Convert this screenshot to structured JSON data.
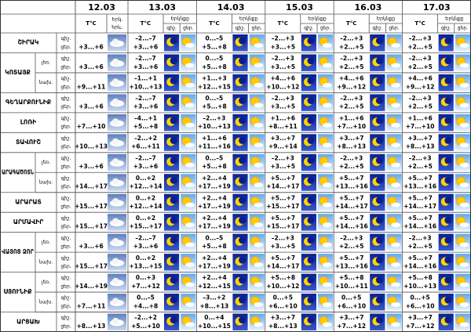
{
  "header": {
    "dates": [
      "12.03",
      "13.03",
      "14.03",
      "15.03",
      "16.03",
      "17.03"
    ],
    "temp_label": "T°C",
    "sky_short_1": "Երկ.",
    "sky_short_2": "երև.",
    "sky_label": "Երկնքը",
    "night": "գիշ.",
    "day": "ցեր."
  },
  "regions": [
    {
      "name": "ՇԻՐԱԿ",
      "rows": [
        {
          "first": "+3...+6",
          "days": [
            [
              "–2...–7",
              "+3...+6"
            ],
            [
              "0...–5",
              "+5...+8"
            ],
            [
              "–2...+3",
              "+3...+5"
            ],
            [
              "–2...+3",
              "+2...+5"
            ],
            [
              "–2...+3",
              "+2...+5"
            ]
          ]
        }
      ]
    },
    {
      "name": "ԿՈՏԱՅՔ",
      "rows": [
        {
          "sub": "լեռ.",
          "first": "+3...+6",
          "days": [
            [
              "–2...–7",
              "+3...+6"
            ],
            [
              "0...–5",
              "+5...+8"
            ],
            [
              "–2...+3",
              "+3...+5"
            ],
            [
              "–2...+3",
              "+2...+5"
            ],
            [
              "–2...+3",
              "+2...+5"
            ]
          ]
        },
        {
          "sub": "նախ.",
          "first": "+9...+11",
          "days": [
            [
              "–1...+1",
              "+10...+13"
            ],
            [
              "+1...+3",
              "+12...+15"
            ],
            [
              "+4...+6",
              "+10...+12"
            ],
            [
              "+4...+6",
              "+9...+12"
            ],
            [
              "+4...+6",
              "+9...+12"
            ]
          ]
        }
      ]
    },
    {
      "name": "ԳԵՂԱՐՔՈՒՆԻՔ",
      "rows": [
        {
          "first": "+3...+6",
          "days": [
            [
              "–2...–7",
              "+3...+6"
            ],
            [
              "0...–5",
              "+5...+8"
            ],
            [
              "–2...+3",
              "+3...+5"
            ],
            [
              "–2...+3",
              "+2...+5"
            ],
            [
              "–2...+3",
              "+2...+5"
            ]
          ]
        }
      ]
    },
    {
      "name": "ԼՈՌԻ",
      "rows": [
        {
          "first": "+7...+10",
          "days": [
            [
              "–4...+1",
              "+5...+8"
            ],
            [
              "–2...+3",
              "+10...+13"
            ],
            [
              "+1...+6",
              "+8...+11"
            ],
            [
              "+1...+6",
              "+7...+10"
            ],
            [
              "+1...+6",
              "+7...+10"
            ]
          ]
        }
      ]
    },
    {
      "name": "ՏԱՎՈՒՇ",
      "rows": [
        {
          "first": "+10...+13",
          "days": [
            [
              "–2...+2",
              "+6...+11"
            ],
            [
              "+1...+6",
              "+11...+16"
            ],
            [
              "+3...+7",
              "+9...+14"
            ],
            [
              "+3...+7",
              "+8...+13"
            ],
            [
              "+3...+7",
              "+8...+13"
            ]
          ]
        }
      ]
    },
    {
      "name": "ԱՐԱԳԱԾՈՏՆ",
      "rows": [
        {
          "sub": "լեռ.",
          "first": "+3...+6",
          "days": [
            [
              "–2...–7",
              "+3...+6"
            ],
            [
              "0...–5",
              "+5...+8"
            ],
            [
              "–2...+3",
              "+3...+5"
            ],
            [
              "–2...+3",
              "+2...+5"
            ],
            [
              "–2...+3",
              "+2...+5"
            ]
          ]
        },
        {
          "sub": "նախ.",
          "first": "+14...+17",
          "days": [
            [
              "0...+2",
              "+12...+14"
            ],
            [
              "+2...+4",
              "+17...+19"
            ],
            [
              "+5...+7",
              "+14...+17"
            ],
            [
              "+5...+7",
              "+13...+16"
            ],
            [
              "+5...+7",
              "+13...+16"
            ]
          ]
        }
      ]
    },
    {
      "name": "ԱՐԱՐԱՏ",
      "rows": [
        {
          "first": "+15...+17",
          "days": [
            [
              "0...+2",
              "+12...+14"
            ],
            [
              "+2...+4",
              "+17...+19"
            ],
            [
              "+5...+7",
              "+15...+17"
            ],
            [
              "+5...+7",
              "+14...+17"
            ],
            [
              "+5...+7",
              "+14...+17"
            ]
          ]
        }
      ]
    },
    {
      "name": "ԱՐՄԱՎԻՐ",
      "rows": [
        {
          "first": "+15...+17",
          "days": [
            [
              "0...+2",
              "+15...+17"
            ],
            [
              "+2...+4",
              "+17...+19"
            ],
            [
              "+5...+7",
              "+15...+17"
            ],
            [
              "+5...+7",
              "+14...+16"
            ],
            [
              "+5...+7",
              "+14...+16"
            ]
          ]
        }
      ]
    },
    {
      "name": "ՎԱՅՈՑ ՁՈՐ",
      "rows": [
        {
          "sub": "լեռ.",
          "first": "+3...+6",
          "days": [
            [
              "–2...–7",
              "+3...+6"
            ],
            [
              "0...–5",
              "+5...+8"
            ],
            [
              "–2...+3",
              "+3...+5"
            ],
            [
              "–2...+3",
              "+2...+5"
            ],
            [
              "–2...+3",
              "+2...+5"
            ]
          ]
        },
        {
          "sub": "նախ.",
          "first": "+15...+17",
          "days": [
            [
              "0...+2",
              "+13...+15"
            ],
            [
              "+2...+4",
              "+17...+19"
            ],
            [
              "+5...+7",
              "+14...+17"
            ],
            [
              "+5...+7",
              "+13...+16"
            ],
            [
              "+5...+7",
              "+14...+16"
            ]
          ]
        }
      ]
    },
    {
      "name": "ՍՅՈՒՆԻՔ",
      "rows": [
        {
          "sub": "լեռ.",
          "first": "+14...+19",
          "days": [
            [
              "0...+3",
              "+7...+12"
            ],
            [
              "+2...+4",
              "+12...+15"
            ],
            [
              "+5...+8",
              "+10...+12"
            ],
            [
              "+5...+8",
              "+10...+11"
            ],
            [
              "+5...+8",
              "+10...+13"
            ]
          ]
        },
        {
          "sub": "նախ.",
          "first": "+7...+11",
          "days": [
            [
              "0...–5",
              "+4...+8"
            ],
            [
              "–3...+2",
              "+8...+13"
            ],
            [
              "0...+5",
              "+6...+10"
            ],
            [
              "0...+5",
              "+6...+10"
            ],
            [
              "0...+5",
              "+6...+10"
            ]
          ]
        }
      ]
    },
    {
      "name": "ԱՐՑԱԽ",
      "rows": [
        {
          "first": "+8...+13",
          "days": [
            [
              "–2...+2",
              "+5...+10"
            ],
            [
              "0...+4",
              "+10...+15"
            ],
            [
              "+3...+7",
              "+8...+13"
            ],
            [
              "+3...+7",
              "+7...+12"
            ],
            [
              "+3...+7",
              "+7...+12"
            ]
          ]
        }
      ]
    }
  ]
}
